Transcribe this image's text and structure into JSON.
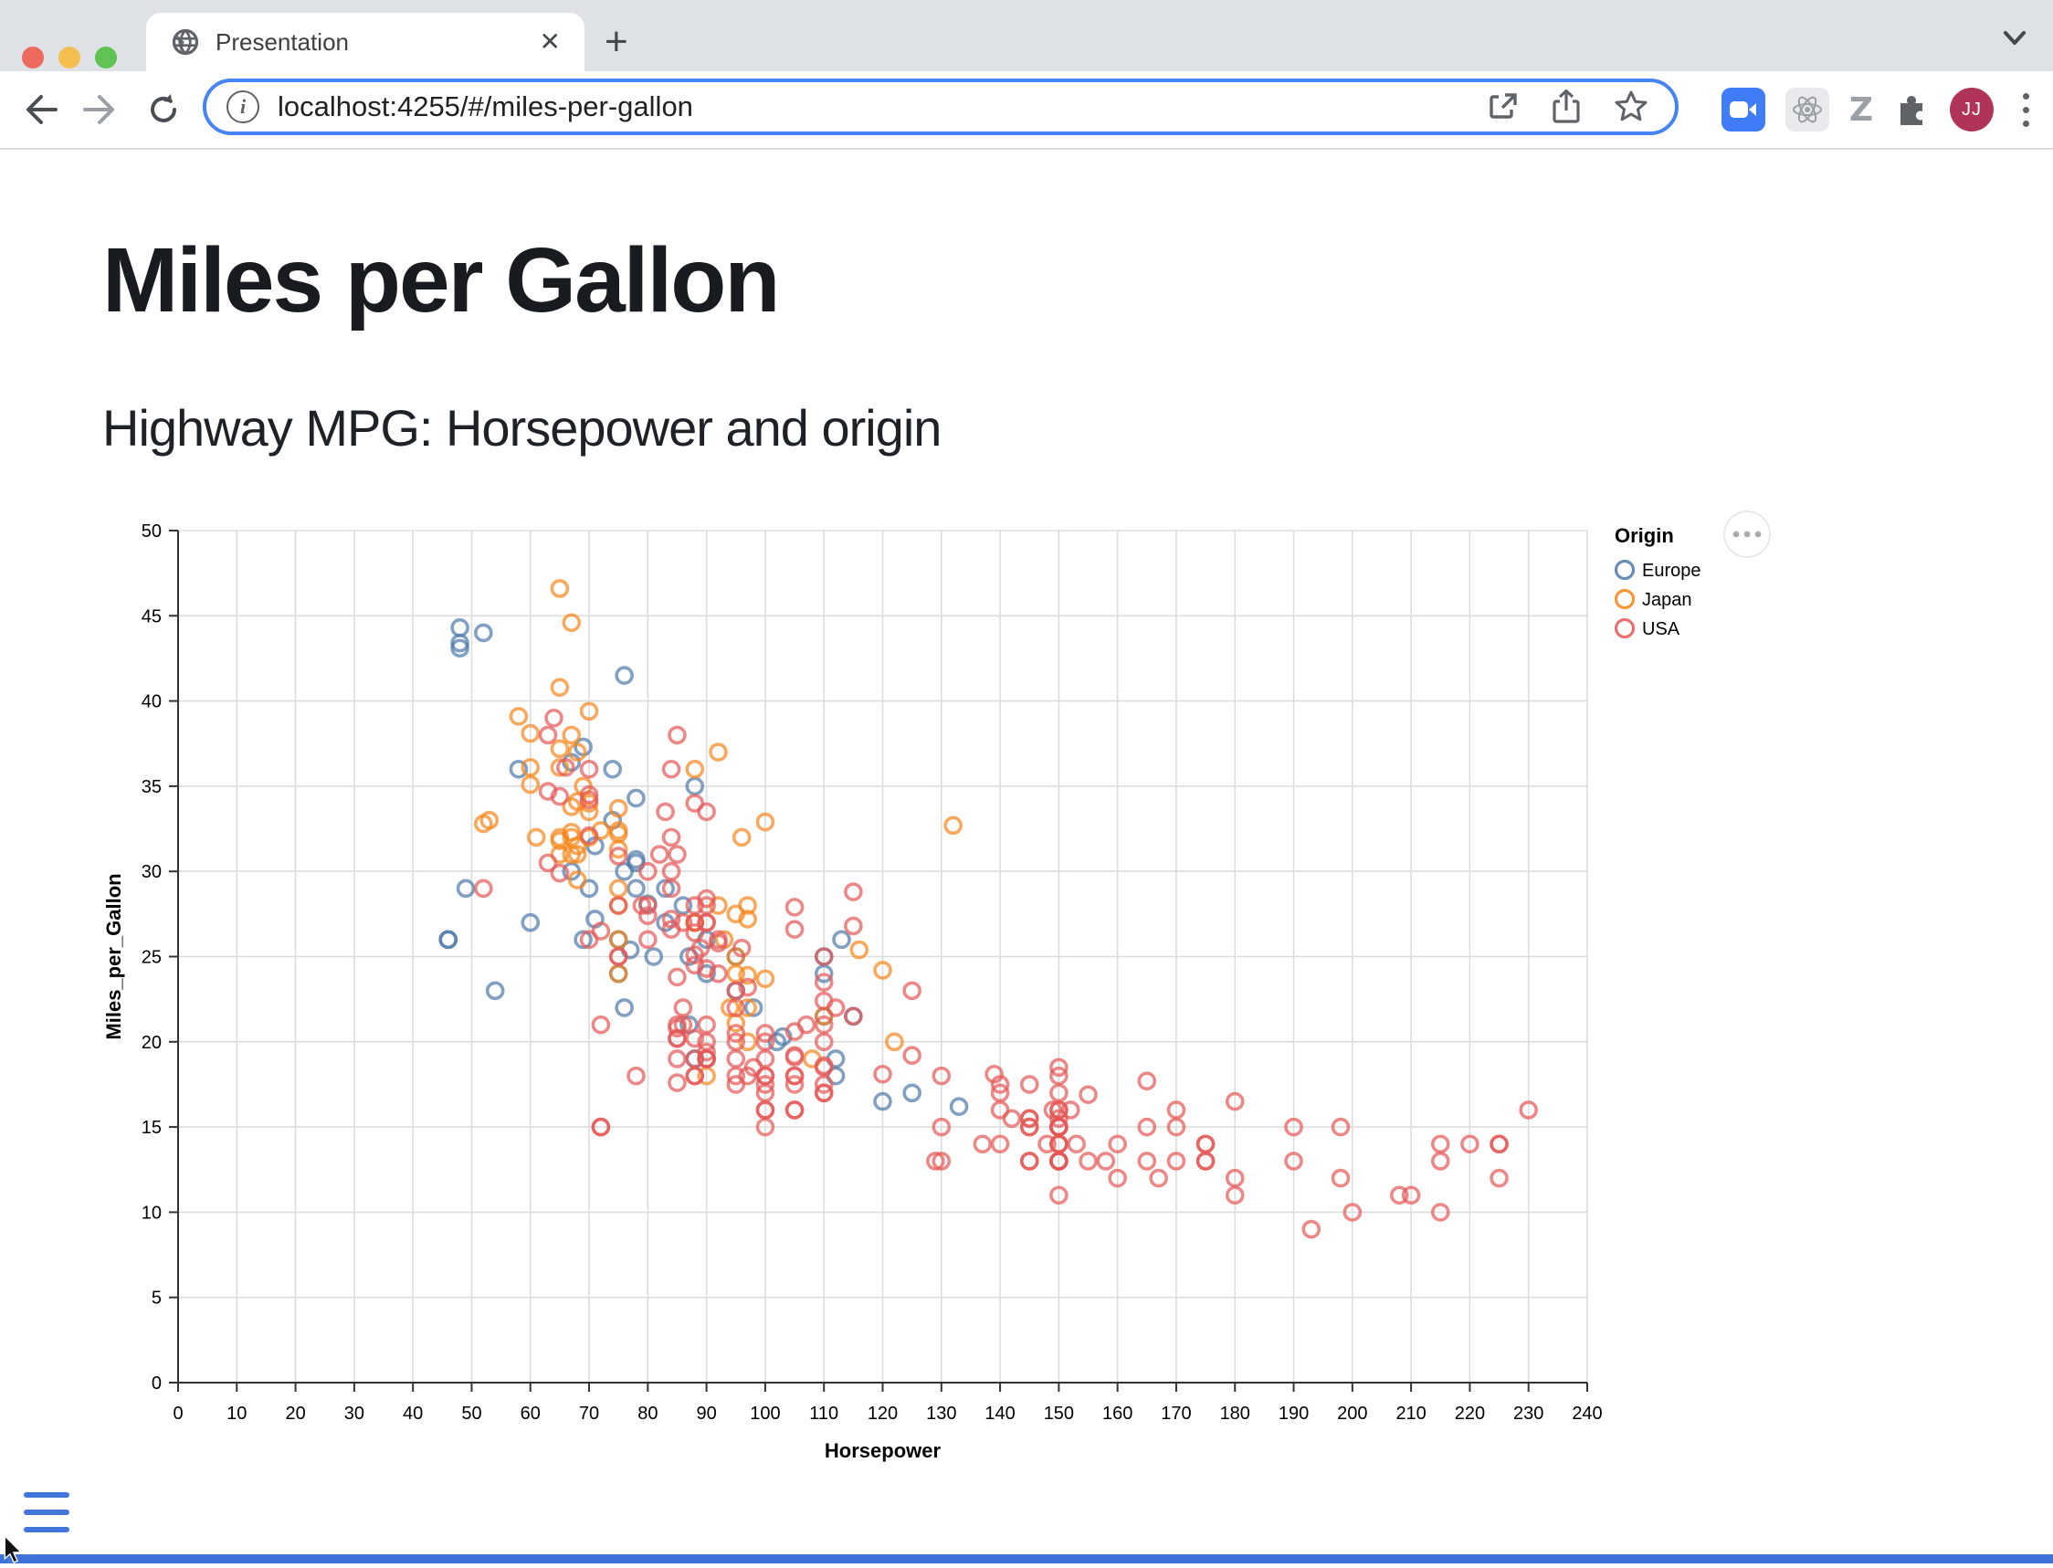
{
  "browser": {
    "tab": {
      "title": "Presentation",
      "close_label": "✕",
      "favicon": "globe-icon"
    },
    "new_tab_label": "+",
    "url": "localhost:4255/#/miles-per-gallon",
    "avatar_initials": "JJ"
  },
  "page": {
    "title": "Miles per Gallon",
    "subtitle": "Highway MPG: Horsepower and origin"
  },
  "chart_data": {
    "type": "scatter",
    "title": "",
    "xlabel": "Horsepower",
    "ylabel": "Miles_per_Gallon",
    "xlim": [
      0,
      240
    ],
    "ylim": [
      0,
      50
    ],
    "x_tick_step": 10,
    "y_tick_step": 5,
    "grid": true,
    "point_opacity": 0.7,
    "legend": {
      "title": "Origin",
      "position": "right"
    },
    "series": [
      {
        "name": "Europe",
        "color": "#4c78a8",
        "points": [
          [
            46,
            26
          ],
          [
            46,
            26
          ],
          [
            87,
            25
          ],
          [
            90,
            24
          ],
          [
            95,
            25
          ],
          [
            113,
            26
          ],
          [
            54,
            23
          ],
          [
            76,
            30
          ],
          [
            69,
            26
          ],
          [
            76,
            22
          ],
          [
            87,
            21
          ],
          [
            112,
            18
          ],
          [
            49,
            29
          ],
          [
            75,
            24
          ],
          [
            75,
            26
          ],
          [
            90,
            26
          ],
          [
            112,
            19
          ],
          [
            110,
            24
          ],
          [
            95,
            23
          ],
          [
            110,
            25
          ],
          [
            98,
            22
          ],
          [
            86,
            28
          ],
          [
            81,
            25
          ],
          [
            88,
            19
          ],
          [
            83,
            27
          ],
          [
            70,
            29
          ],
          [
            102,
            20
          ],
          [
            120,
            16.5
          ],
          [
            58,
            36
          ],
          [
            78,
            30.5
          ],
          [
            78,
            29
          ],
          [
            125,
            17
          ],
          [
            115,
            21.5
          ],
          [
            133,
            16.2
          ],
          [
            71,
            31.5
          ],
          [
            110,
            21.5
          ],
          [
            103,
            20.3
          ],
          [
            48,
            43.1
          ],
          [
            69,
            37.3
          ],
          [
            71,
            27.2
          ],
          [
            77,
            25.4
          ],
          [
            78,
            34.3
          ],
          [
            48,
            44.3
          ],
          [
            48,
            43.4
          ],
          [
            67,
            36.4
          ],
          [
            67,
            30
          ],
          [
            88,
            35
          ],
          [
            76,
            41.5
          ],
          [
            74,
            33
          ],
          [
            80,
            28.1
          ],
          [
            78,
            30.7
          ],
          [
            74,
            36
          ],
          [
            52,
            44
          ],
          [
            83,
            29
          ],
          [
            60,
            27
          ]
        ]
      },
      {
        "name": "Japan",
        "color": "#f58518",
        "points": [
          [
            95,
            24
          ],
          [
            88,
            27
          ],
          [
            88,
            27
          ],
          [
            95,
            25
          ],
          [
            65,
            31
          ],
          [
            69,
            35
          ],
          [
            92,
            28
          ],
          [
            97,
            28
          ],
          [
            88,
            27
          ],
          [
            90,
            18
          ],
          [
            94,
            22
          ],
          [
            97,
            20
          ],
          [
            122,
            20
          ],
          [
            67,
            31
          ],
          [
            65,
            32
          ],
          [
            75,
            24
          ],
          [
            93,
            26
          ],
          [
            61,
            32
          ],
          [
            53,
            33
          ],
          [
            75,
            29
          ],
          [
            70,
            33.5
          ],
          [
            68,
            31.5
          ],
          [
            75,
            28
          ],
          [
            108,
            19
          ],
          [
            70,
            32
          ],
          [
            75,
            26
          ],
          [
            97,
            22
          ],
          [
            110,
            21.5
          ],
          [
            97,
            27.2
          ],
          [
            95,
            21.1
          ],
          [
            97,
            23.9
          ],
          [
            68,
            29.5
          ],
          [
            95,
            27.5
          ],
          [
            52,
            32.8
          ],
          [
            70,
            39.4
          ],
          [
            60,
            36.1
          ],
          [
            65,
            31.8
          ],
          [
            60,
            38.1
          ],
          [
            65,
            37.2
          ],
          [
            65,
            46.6
          ],
          [
            67,
            44.6
          ],
          [
            65,
            40.8
          ],
          [
            67,
            33.8
          ],
          [
            75,
            31.3
          ],
          [
            92,
            37
          ],
          [
            75,
            32.2
          ],
          [
            132,
            32.7
          ],
          [
            100,
            23.7
          ],
          [
            72,
            32.4
          ],
          [
            58,
            39.1
          ],
          [
            60,
            35.1
          ],
          [
            67,
            32.3
          ],
          [
            68,
            34.1
          ],
          [
            75,
            33.7
          ],
          [
            75,
            32.4
          ],
          [
            100,
            32.9
          ],
          [
            116,
            25.4
          ],
          [
            120,
            24.2
          ],
          [
            68,
            37
          ],
          [
            68,
            31
          ],
          [
            88,
            36
          ],
          [
            67,
            38
          ],
          [
            67,
            32
          ],
          [
            96,
            32
          ],
          [
            70,
            34
          ],
          [
            65,
            36.1
          ]
        ]
      },
      {
        "name": "USA",
        "color": "#e45756",
        "points": [
          [
            130,
            18
          ],
          [
            165,
            15
          ],
          [
            150,
            18
          ],
          [
            150,
            16
          ],
          [
            140,
            17
          ],
          [
            198,
            15
          ],
          [
            220,
            14
          ],
          [
            215,
            14
          ],
          [
            225,
            14
          ],
          [
            190,
            15
          ],
          [
            170,
            15
          ],
          [
            160,
            14
          ],
          [
            150,
            15
          ],
          [
            225,
            14
          ],
          [
            95,
            22
          ],
          [
            97,
            18
          ],
          [
            85,
            21
          ],
          [
            90,
            21
          ],
          [
            215,
            10
          ],
          [
            200,
            10
          ],
          [
            210,
            11
          ],
          [
            193,
            9
          ],
          [
            90,
            28
          ],
          [
            88,
            19
          ],
          [
            105,
            16
          ],
          [
            100,
            17
          ],
          [
            88,
            18
          ],
          [
            175,
            14
          ],
          [
            150,
            14
          ],
          [
            75,
            25
          ],
          [
            70,
            26
          ],
          [
            90,
            19
          ],
          [
            80,
            28
          ],
          [
            86,
            21
          ],
          [
            86,
            22
          ],
          [
            165,
            13
          ],
          [
            175,
            14
          ],
          [
            150,
            15
          ],
          [
            153,
            14
          ],
          [
            150,
            17
          ],
          [
            208,
            11
          ],
          [
            155,
            13
          ],
          [
            160,
            12
          ],
          [
            190,
            13
          ],
          [
            90,
            20
          ],
          [
            175,
            13
          ],
          [
            150,
            14
          ],
          [
            145,
            13
          ],
          [
            137,
            14
          ],
          [
            150,
            15
          ],
          [
            198,
            12
          ],
          [
            150,
            13
          ],
          [
            158,
            13
          ],
          [
            150,
            14
          ],
          [
            215,
            13
          ],
          [
            225,
            12
          ],
          [
            175,
            13
          ],
          [
            105,
            18
          ],
          [
            100,
            16
          ],
          [
            100,
            18
          ],
          [
            88,
            18
          ],
          [
            95,
            23
          ],
          [
            150,
            11
          ],
          [
            167,
            12
          ],
          [
            170,
            13
          ],
          [
            180,
            12
          ],
          [
            100,
            18
          ],
          [
            72,
            21
          ],
          [
            85,
            19
          ],
          [
            107,
            21
          ],
          [
            145,
            15
          ],
          [
            230,
            16
          ],
          [
            150,
            15
          ],
          [
            180,
            11
          ],
          [
            95,
            20
          ],
          [
            90,
            19
          ],
          [
            100,
            15
          ],
          [
            80,
            26
          ],
          [
            75,
            25
          ],
          [
            100,
            16
          ],
          [
            140,
            16
          ],
          [
            150,
            13
          ],
          [
            140,
            14
          ],
          [
            75,
            28
          ],
          [
            95,
            19
          ],
          [
            105,
            18
          ],
          [
            72,
            15
          ],
          [
            72,
            15
          ],
          [
            170,
            16
          ],
          [
            145,
            15
          ],
          [
            150,
            16
          ],
          [
            148,
            14
          ],
          [
            110,
            17
          ],
          [
            105,
            16
          ],
          [
            95,
            18
          ],
          [
            110,
            21
          ],
          [
            110,
            20
          ],
          [
            129,
            13
          ],
          [
            90,
            19
          ],
          [
            52,
            29
          ],
          [
            100,
            20
          ],
          [
            78,
            18
          ],
          [
            110,
            18.5
          ],
          [
            95,
            17.5
          ],
          [
            72,
            26.5
          ],
          [
            150,
            13
          ],
          [
            180,
            16.5
          ],
          [
            145,
            13
          ],
          [
            130,
            13
          ],
          [
            150,
            13
          ],
          [
            80,
            30
          ],
          [
            96,
            25.5
          ],
          [
            88,
            24.5
          ],
          [
            89,
            25.5
          ],
          [
            145,
            17.5
          ],
          [
            110,
            17
          ],
          [
            145,
            15.5
          ],
          [
            130,
            15
          ],
          [
            110,
            17.5
          ],
          [
            105,
            17.5
          ],
          [
            100,
            17.5
          ],
          [
            98,
            18.5
          ],
          [
            152,
            16
          ],
          [
            145,
            15.5
          ],
          [
            150,
            15.5
          ],
          [
            149,
            16
          ],
          [
            63,
            30.5
          ],
          [
            83,
            33.5
          ],
          [
            139,
            18.1
          ],
          [
            140,
            17.5
          ],
          [
            95,
            20.5
          ],
          [
            105,
            19.2
          ],
          [
            85,
            20.2
          ],
          [
            75,
            30.9
          ],
          [
            97,
            23.2
          ],
          [
            85,
            23.8
          ],
          [
            85,
            20.2
          ],
          [
            88,
            25.1
          ],
          [
            100,
            20.5
          ],
          [
            90,
            19.4
          ],
          [
            105,
            20.6
          ],
          [
            85,
            20.8
          ],
          [
            110,
            18.6
          ],
          [
            120,
            18.1
          ],
          [
            165,
            17.7
          ],
          [
            115,
            21.5
          ],
          [
            155,
            16.9
          ],
          [
            142,
            15.5
          ],
          [
            125,
            19.2
          ],
          [
            150,
            18.5
          ],
          [
            66,
            36.1
          ],
          [
            70,
            34.2
          ],
          [
            70,
            34.5
          ],
          [
            90,
            28.4
          ],
          [
            115,
            28.8
          ],
          [
            115,
            26.8
          ],
          [
            90,
            33.5
          ],
          [
            80,
            27.4
          ],
          [
            125,
            23
          ],
          [
            70,
            32.1
          ],
          [
            88,
            26.4
          ],
          [
            90,
            24.3
          ],
          [
            105,
            19.1
          ],
          [
            105,
            27.9
          ],
          [
            84,
            27.2
          ],
          [
            84,
            26.6
          ],
          [
            92,
            25.8
          ],
          [
            110,
            23.5
          ],
          [
            84,
            30
          ],
          [
            63,
            34.7
          ],
          [
            65,
            34.4
          ],
          [
            65,
            29.9
          ],
          [
            110,
            22.4
          ],
          [
            105,
            26.6
          ],
          [
            88,
            20.2
          ],
          [
            85,
            17.6
          ],
          [
            64,
            39
          ],
          [
            88,
            28
          ],
          [
            88,
            27
          ],
          [
            88,
            34
          ],
          [
            85,
            31
          ],
          [
            84,
            29
          ],
          [
            90,
            27
          ],
          [
            92,
            24
          ],
          [
            63,
            38
          ],
          [
            70,
            36
          ],
          [
            110,
            25
          ],
          [
            85,
            38
          ],
          [
            92,
            26
          ],
          [
            112,
            22
          ],
          [
            84,
            36
          ],
          [
            90,
            27
          ],
          [
            86,
            27
          ],
          [
            84,
            32
          ],
          [
            79,
            28
          ],
          [
            82,
            31
          ],
          [
            100,
            19
          ]
        ]
      }
    ]
  }
}
